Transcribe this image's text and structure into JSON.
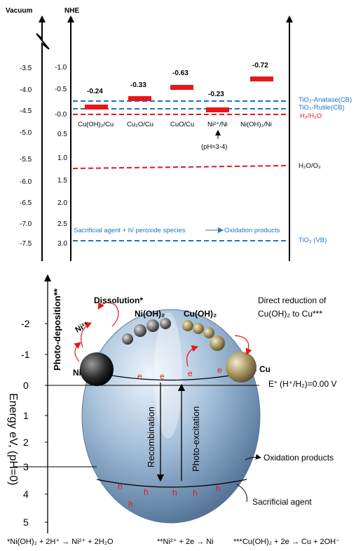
{
  "top_diagram": {
    "vacuum_label": "Vacuum",
    "nhe_label": "NHE",
    "vacuum_ticks": [
      "-3.5",
      "-4.0",
      "-4.5",
      "-5.0",
      "-5.5",
      "-6.0",
      "-6.5",
      "-7.0",
      "-7.5"
    ],
    "nhe_ticks": [
      "-1.0",
      "-0.5",
      "-0.0",
      "0.5",
      "1.0",
      "1.5",
      "2.0",
      "2.5",
      "3.0"
    ],
    "couples": [
      {
        "value": "-0.24",
        "label": "Cu(OH)₂/Cu"
      },
      {
        "value": "-0.33",
        "label": "Cu₂O/Cu"
      },
      {
        "value": "-0.63",
        "label": "CuO/Cu"
      },
      {
        "value": "-0.23",
        "label": "Ni²⁺/Ni"
      },
      {
        "value": "-0.72",
        "label": "Ni(OH)₂/Ni"
      }
    ],
    "ph_note": "(pH≈3-4)",
    "levels": {
      "anatase": "TiO₂-Anatase(CB)",
      "rutile": "TiO₂-Rutile(CB)",
      "h2": "H₂/H₂O",
      "o2": "H₂O/O₂",
      "vb": "TiO₂ (VB)"
    },
    "sacrificial_text": "Sacrificial  agent + h/ peroxide species",
    "oxidation_text": "Oxidation products",
    "colors": {
      "blue": "#1f73c4",
      "red": "#e8161b",
      "bar": "#e8161b"
    }
  },
  "bottom_diagram": {
    "y_axis_label": "Energy eV, (pH=0)",
    "y_ticks": [
      "-2",
      "-1",
      "0",
      "1",
      "2",
      "3",
      "4",
      "5"
    ],
    "photo_deposition": "Photo-deposition**",
    "dissolution": "Dissolution*",
    "ni2": "Ni²⁺",
    "nioh2": "Ni(OH)₂",
    "cuoh2": "Cu(OH)₂",
    "direct_reduction_1": "Direct reduction of",
    "direct_reduction_2": "Cu(OH)₂ to Cu***",
    "ni": "Ni",
    "cu": "Cu",
    "e_symbol": "e",
    "h_symbol": "h",
    "e0_label": "E° (H⁺/H₂)=0.00 V",
    "recombination": "Recombination",
    "photo_excitation": "Photo-excitation",
    "oxidation_products": "Oxidation products",
    "sacrificial_agent": "Sacrificial agent"
  },
  "footer": {
    "eq1": "*Ni(OH)₂ + 2H⁺ → Ni²⁺ + 2H₂O",
    "eq2": "**Ni²⁺ + 2e → Ni",
    "eq3": "***Cu(OH)₂ + 2e → Cu + 2OH⁻"
  }
}
